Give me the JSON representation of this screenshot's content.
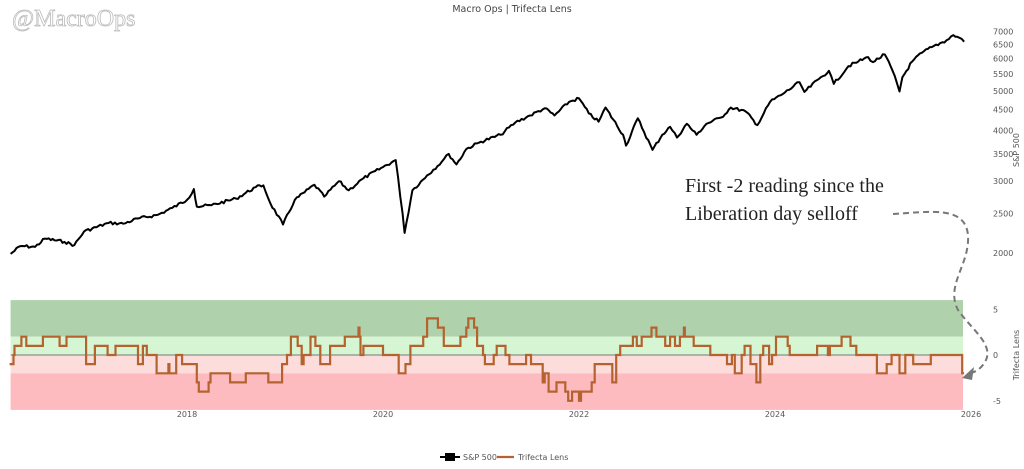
{
  "watermark": "@MacroOps",
  "title": "Macro Ops | Trifecta Lens",
  "annotation": {
    "line1": "First -2 reading since the",
    "line2": "Liberation day selloff"
  },
  "legend": [
    {
      "label": "S&P 500",
      "color": "#000000"
    },
    {
      "label": "Trifecta Lens",
      "color": "#b5632e"
    }
  ],
  "chart_data": [
    {
      "type": "line",
      "series": [
        {
          "name": "S&P 500",
          "color": "#000000",
          "points": [
            [
              2016.2,
              1990
            ],
            [
              2016.3,
              2080
            ],
            [
              2016.45,
              2070
            ],
            [
              2016.55,
              2170
            ],
            [
              2016.75,
              2130
            ],
            [
              2016.85,
              2090
            ],
            [
              2016.95,
              2260
            ],
            [
              2017.2,
              2370
            ],
            [
              2017.35,
              2360
            ],
            [
              2017.5,
              2430
            ],
            [
              2017.7,
              2480
            ],
            [
              2017.85,
              2580
            ],
            [
              2018.0,
              2700
            ],
            [
              2018.07,
              2870
            ],
            [
              2018.1,
              2600
            ],
            [
              2018.25,
              2620
            ],
            [
              2018.5,
              2720
            ],
            [
              2018.7,
              2900
            ],
            [
              2018.78,
              2930
            ],
            [
              2018.85,
              2650
            ],
            [
              2018.98,
              2350
            ],
            [
              2019.1,
              2700
            ],
            [
              2019.3,
              2940
            ],
            [
              2019.4,
              2750
            ],
            [
              2019.55,
              3000
            ],
            [
              2019.65,
              2850
            ],
            [
              2019.8,
              3050
            ],
            [
              2020.0,
              3250
            ],
            [
              2020.13,
              3380
            ],
            [
              2020.2,
              2500
            ],
            [
              2020.22,
              2240
            ],
            [
              2020.3,
              2850
            ],
            [
              2020.45,
              3100
            ],
            [
              2020.6,
              3350
            ],
            [
              2020.67,
              3500
            ],
            [
              2020.75,
              3300
            ],
            [
              2020.85,
              3600
            ],
            [
              2021.0,
              3750
            ],
            [
              2021.2,
              3900
            ],
            [
              2021.35,
              4180
            ],
            [
              2021.5,
              4350
            ],
            [
              2021.65,
              4530
            ],
            [
              2021.75,
              4350
            ],
            [
              2021.9,
              4700
            ],
            [
              2022.0,
              4790
            ],
            [
              2022.1,
              4400
            ],
            [
              2022.2,
              4200
            ],
            [
              2022.27,
              4550
            ],
            [
              2022.45,
              3900
            ],
            [
              2022.48,
              3670
            ],
            [
              2022.6,
              4280
            ],
            [
              2022.75,
              3580
            ],
            [
              2022.85,
              3900
            ],
            [
              2022.93,
              4080
            ],
            [
              2023.0,
              3840
            ],
            [
              2023.1,
              4150
            ],
            [
              2023.2,
              3900
            ],
            [
              2023.3,
              4150
            ],
            [
              2023.45,
              4300
            ],
            [
              2023.55,
              4550
            ],
            [
              2023.7,
              4450
            ],
            [
              2023.82,
              4120
            ],
            [
              2023.95,
              4700
            ],
            [
              2024.1,
              4950
            ],
            [
              2024.25,
              5250
            ],
            [
              2024.3,
              4970
            ],
            [
              2024.45,
              5350
            ],
            [
              2024.55,
              5600
            ],
            [
              2024.6,
              5200
            ],
            [
              2024.75,
              5750
            ],
            [
              2024.85,
              5900
            ],
            [
              2024.95,
              6050
            ],
            [
              2025.0,
              5880
            ],
            [
              2025.12,
              6140
            ],
            [
              2025.2,
              5600
            ],
            [
              2025.27,
              4980
            ],
            [
              2025.3,
              5400
            ],
            [
              2025.4,
              5900
            ],
            [
              2025.5,
              6200
            ],
            [
              2025.6,
              6400
            ],
            [
              2025.75,
              6650
            ],
            [
              2025.82,
              6850
            ],
            [
              2025.88,
              6750
            ],
            [
              2025.93,
              6600
            ]
          ]
        }
      ],
      "ylabel": "S&P 500",
      "yscale": "log",
      "yticks": [
        2000,
        2500,
        3000,
        3500,
        4000,
        4500,
        5000,
        5500,
        6000,
        6500,
        7000
      ],
      "ylim": [
        1800,
        7300
      ],
      "axis_side": "right"
    },
    {
      "type": "line",
      "step": true,
      "series": [
        {
          "name": "Trifecta Lens",
          "color": "#b5632e",
          "points": [
            [
              2016.19,
              -1
            ],
            [
              2016.23,
              0
            ],
            [
              2016.24,
              1
            ],
            [
              2016.31,
              2
            ],
            [
              2016.36,
              1
            ],
            [
              2016.53,
              2
            ],
            [
              2016.7,
              1
            ],
            [
              2016.77,
              2
            ],
            [
              2016.97,
              -1
            ],
            [
              2017.06,
              1
            ],
            [
              2017.19,
              0
            ],
            [
              2017.27,
              1
            ],
            [
              2017.5,
              -1
            ],
            [
              2017.55,
              1
            ],
            [
              2017.59,
              0
            ],
            [
              2017.69,
              -2
            ],
            [
              2017.81,
              -1
            ],
            [
              2017.82,
              -2
            ],
            [
              2017.89,
              0
            ],
            [
              2017.95,
              -1
            ],
            [
              2018.1,
              -3
            ],
            [
              2018.12,
              -4
            ],
            [
              2018.22,
              -3
            ],
            [
              2018.24,
              -2
            ],
            [
              2018.44,
              -3
            ],
            [
              2018.6,
              -2
            ],
            [
              2018.83,
              -3
            ],
            [
              2018.97,
              -1
            ],
            [
              2019.02,
              0
            ],
            [
              2019.06,
              2
            ],
            [
              2019.13,
              1
            ],
            [
              2019.17,
              -1
            ],
            [
              2019.19,
              0
            ],
            [
              2019.26,
              2
            ],
            [
              2019.31,
              1
            ],
            [
              2019.36,
              -1
            ],
            [
              2019.46,
              1
            ],
            [
              2019.61,
              2
            ],
            [
              2019.75,
              3
            ],
            [
              2019.76,
              2
            ],
            [
              2019.77,
              0
            ],
            [
              2019.8,
              1
            ],
            [
              2020.0,
              0
            ],
            [
              2020.16,
              -2
            ],
            [
              2020.23,
              -1
            ],
            [
              2020.28,
              1
            ],
            [
              2020.41,
              2
            ],
            [
              2020.45,
              4
            ],
            [
              2020.56,
              3
            ],
            [
              2020.62,
              1
            ],
            [
              2020.79,
              2
            ],
            [
              2020.85,
              3
            ],
            [
              2020.87,
              4
            ],
            [
              2020.93,
              3
            ],
            [
              2020.96,
              1
            ],
            [
              2021.02,
              0
            ],
            [
              2021.04,
              -1
            ],
            [
              2021.13,
              0
            ],
            [
              2021.16,
              1
            ],
            [
              2021.25,
              0
            ],
            [
              2021.29,
              -1
            ],
            [
              2021.46,
              0
            ],
            [
              2021.51,
              -1
            ],
            [
              2021.63,
              -3
            ],
            [
              2021.65,
              -2
            ],
            [
              2021.69,
              -4
            ],
            [
              2021.77,
              -3
            ],
            [
              2021.86,
              -4
            ],
            [
              2021.89,
              -5
            ],
            [
              2021.93,
              -4
            ],
            [
              2022.0,
              -5
            ],
            [
              2022.02,
              -4
            ],
            [
              2022.13,
              -3
            ],
            [
              2022.16,
              -1
            ],
            [
              2022.34,
              -3
            ],
            [
              2022.38,
              0
            ],
            [
              2022.42,
              1
            ],
            [
              2022.55,
              2
            ],
            [
              2022.59,
              1
            ],
            [
              2022.64,
              2
            ],
            [
              2022.74,
              3
            ],
            [
              2022.79,
              2
            ],
            [
              2022.88,
              1
            ],
            [
              2022.93,
              2
            ],
            [
              2022.98,
              1
            ],
            [
              2023.03,
              2
            ],
            [
              2023.07,
              3
            ],
            [
              2023.08,
              2
            ],
            [
              2023.17,
              1
            ],
            [
              2023.34,
              0
            ],
            [
              2023.51,
              -1
            ],
            [
              2023.56,
              0
            ],
            [
              2023.59,
              -2
            ],
            [
              2023.66,
              0
            ],
            [
              2023.69,
              1
            ],
            [
              2023.75,
              -1
            ],
            [
              2023.81,
              -3
            ],
            [
              2023.85,
              0
            ],
            [
              2023.88,
              1
            ],
            [
              2023.94,
              -1
            ],
            [
              2023.97,
              0
            ],
            [
              2024.01,
              2
            ],
            [
              2024.13,
              1
            ],
            [
              2024.15,
              0
            ],
            [
              2024.43,
              1
            ],
            [
              2024.54,
              0
            ],
            [
              2024.56,
              1
            ],
            [
              2024.68,
              2
            ],
            [
              2024.77,
              1
            ],
            [
              2024.83,
              0
            ],
            [
              2025.04,
              -2
            ],
            [
              2025.14,
              -1
            ],
            [
              2025.19,
              0
            ],
            [
              2025.27,
              -2
            ],
            [
              2025.33,
              0
            ],
            [
              2025.41,
              -1
            ],
            [
              2025.59,
              0
            ],
            [
              2025.91,
              -2
            ],
            [
              2025.93,
              -2
            ]
          ]
        }
      ],
      "ylabel": "Trifecta Lens",
      "yticks": [
        5,
        0,
        -5
      ],
      "ylim": [
        -6,
        6
      ],
      "bands": [
        {
          "from": 2,
          "to": 6,
          "color": "#afd2ad"
        },
        {
          "from": 0,
          "to": 2,
          "color": "#d5f5d3"
        },
        {
          "from": -2,
          "to": 0,
          "color": "#fddcdc"
        },
        {
          "from": -6,
          "to": -2,
          "color": "#febbbf"
        }
      ],
      "xticks": [
        2018,
        2020,
        2022,
        2024,
        2026
      ],
      "xlim": [
        2016.2,
        2026.15
      ]
    }
  ]
}
